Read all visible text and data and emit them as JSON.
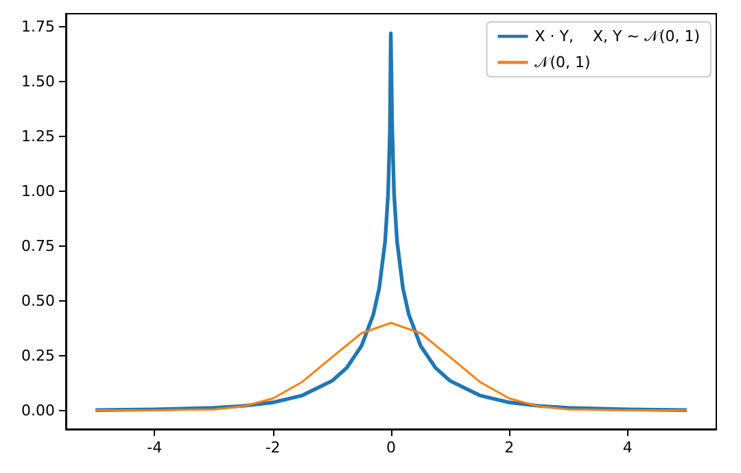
{
  "chart_data": {
    "type": "line",
    "xlim": [
      -5.5,
      5.5
    ],
    "xticks": [
      -4,
      -2,
      0,
      2,
      4
    ],
    "ylim": [
      -0.086,
      1.81
    ],
    "yticks": [
      {
        "value": 0,
        "label": "0.00"
      },
      {
        "value": 0.25,
        "label": "0.25"
      },
      {
        "value": 0.5,
        "label": "0.50"
      },
      {
        "value": 0.75,
        "label": "0.75"
      },
      {
        "value": 1,
        "label": "1.00"
      },
      {
        "value": 1.25,
        "label": "1.25"
      },
      {
        "value": 1.5,
        "label": "1.50"
      },
      {
        "value": 1.75,
        "label": "1.75"
      }
    ],
    "grid": false,
    "legend": "top right",
    "marker": "none",
    "line_style": "solid",
    "series": [
      {
        "name": "X · Y,    X, Y ~ 𝒩(0, 1)",
        "color": "#1f77b4",
        "x": [
          -5,
          -4,
          -3,
          -2.5,
          -2,
          -1.5,
          -1,
          -0.75,
          -0.5,
          -0.3,
          -0.2,
          -0.1,
          -0.05,
          -0.02,
          -0.005,
          0.005,
          0.02,
          0.05,
          0.1,
          0.2,
          0.3,
          0.5,
          0.75,
          1,
          1.5,
          2,
          2.5,
          3,
          4,
          5
        ],
        "values": [
          0.001,
          0.004,
          0.011,
          0.02,
          0.036,
          0.068,
          0.134,
          0.194,
          0.294,
          0.437,
          0.558,
          0.773,
          0.991,
          1.282,
          1.72,
          1.72,
          1.282,
          0.991,
          0.773,
          0.558,
          0.437,
          0.294,
          0.194,
          0.134,
          0.068,
          0.036,
          0.02,
          0.011,
          0.004,
          0.001
        ]
      },
      {
        "name": "𝒩(0, 1)",
        "color": "#ff7f0e",
        "x": [
          -5,
          -4,
          -3,
          -2.5,
          -2,
          -1.5,
          -1,
          -0.5,
          0,
          0.5,
          1,
          1.5,
          2,
          2.5,
          3,
          4,
          5
        ],
        "values": [
          0,
          0,
          0.004,
          0.018,
          0.054,
          0.13,
          0.242,
          0.352,
          0.399,
          0.352,
          0.242,
          0.13,
          0.054,
          0.018,
          0.004,
          0,
          0
        ]
      }
    ]
  }
}
